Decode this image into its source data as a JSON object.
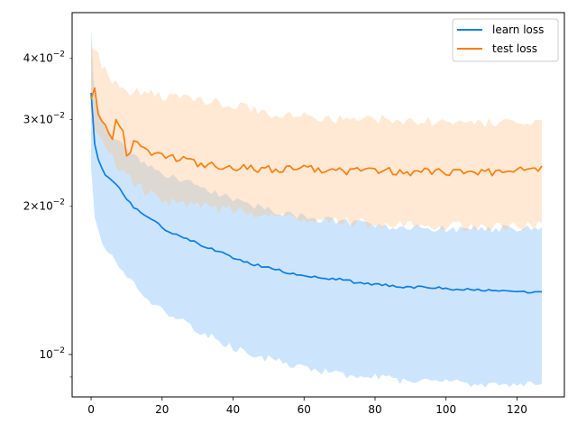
{
  "chart_data": {
    "type": "line",
    "title": "",
    "xlabel": "",
    "ylabel": "",
    "xlim": [
      -5.35,
      133.35
    ],
    "ylim": [
      0.0082,
      0.0495
    ],
    "yscale": "log",
    "grid": false,
    "legend_placement": "top-right",
    "x_ticks": [
      0,
      20,
      40,
      60,
      80,
      100,
      120
    ],
    "x_tick_labels": [
      "0",
      "20",
      "40",
      "60",
      "80",
      "100",
      "120"
    ],
    "y_major_ticks": [
      0.01
    ],
    "y_major_tick_labels": [
      "10^-2"
    ],
    "y_minor_ticks": [
      0.009,
      0.02,
      0.03,
      0.04
    ],
    "y_minor_tick_labels": [
      "",
      "2×10^-2",
      "3×10^-2",
      "4×10^-2"
    ],
    "series": [
      {
        "name": "learn loss",
        "color": "#1f77b4",
        "line_color": "#0a7ee8",
        "band_color": "#6fb4f7",
        "mean_keys": [
          [
            0,
            0.034
          ],
          [
            1,
            0.0268
          ],
          [
            2,
            0.025
          ],
          [
            3,
            0.024
          ],
          [
            4,
            0.0231
          ],
          [
            6,
            0.0226
          ],
          [
            8,
            0.0218
          ],
          [
            10,
            0.0208
          ],
          [
            12,
            0.0199
          ],
          [
            15,
            0.0193
          ],
          [
            18,
            0.0187
          ],
          [
            20,
            0.0181
          ],
          [
            22,
            0.0178
          ],
          [
            25,
            0.0174
          ],
          [
            28,
            0.0171
          ],
          [
            30,
            0.0168
          ],
          [
            35,
            0.0163
          ],
          [
            40,
            0.0157
          ],
          [
            45,
            0.0153
          ],
          [
            50,
            0.015
          ],
          [
            55,
            0.0147
          ],
          [
            60,
            0.0145
          ],
          [
            65,
            0.0143
          ],
          [
            70,
            0.0142
          ],
          [
            75,
            0.014
          ],
          [
            80,
            0.0139
          ],
          [
            85,
            0.0138
          ],
          [
            90,
            0.0137
          ],
          [
            95,
            0.0137
          ],
          [
            100,
            0.0136
          ],
          [
            110,
            0.0135
          ],
          [
            120,
            0.0134
          ],
          [
            127,
            0.0134
          ]
        ],
        "upper_keys": [
          [
            0,
            0.046
          ],
          [
            1,
            0.033
          ],
          [
            3,
            0.03
          ],
          [
            5,
            0.0285
          ],
          [
            8,
            0.027
          ],
          [
            10,
            0.026
          ],
          [
            15,
            0.0245
          ],
          [
            20,
            0.0232
          ],
          [
            30,
            0.022
          ],
          [
            40,
            0.0207
          ],
          [
            50,
            0.0197
          ],
          [
            60,
            0.019
          ],
          [
            70,
            0.0186
          ],
          [
            80,
            0.0183
          ],
          [
            90,
            0.0181
          ],
          [
            100,
            0.018
          ],
          [
            110,
            0.018
          ],
          [
            127,
            0.018
          ]
        ],
        "lower_keys": [
          [
            0,
            0.024
          ],
          [
            1,
            0.019
          ],
          [
            3,
            0.017
          ],
          [
            6,
            0.0157
          ],
          [
            10,
            0.0145
          ],
          [
            15,
            0.0132
          ],
          [
            20,
            0.0123
          ],
          [
            30,
            0.0112
          ],
          [
            40,
            0.0103
          ],
          [
            50,
            0.0098
          ],
          [
            60,
            0.0094
          ],
          [
            70,
            0.0091
          ],
          [
            80,
            0.009
          ],
          [
            90,
            0.0088
          ],
          [
            100,
            0.0088
          ],
          [
            110,
            0.0087
          ],
          [
            127,
            0.0087
          ]
        ]
      },
      {
        "name": "test loss",
        "color": "#ff7f0e",
        "line_color": "#fb7e0c",
        "band_color": "#ffbf85",
        "mean_keys": [
          [
            0,
            0.033
          ],
          [
            1,
            0.0348
          ],
          [
            2,
            0.031
          ],
          [
            4,
            0.0296
          ],
          [
            6,
            0.027
          ],
          [
            7,
            0.03
          ],
          [
            9,
            0.028
          ],
          [
            10,
            0.025
          ],
          [
            12,
            0.027
          ],
          [
            15,
            0.026
          ],
          [
            20,
            0.0255
          ],
          [
            25,
            0.025
          ],
          [
            30,
            0.0245
          ],
          [
            40,
            0.024
          ],
          [
            50,
            0.0238
          ],
          [
            60,
            0.024
          ],
          [
            70,
            0.0236
          ],
          [
            80,
            0.0236
          ],
          [
            90,
            0.0235
          ],
          [
            100,
            0.0235
          ],
          [
            110,
            0.0234
          ],
          [
            120,
            0.0236
          ],
          [
            127,
            0.0238
          ]
        ],
        "upper_keys": [
          [
            0,
            0.042
          ],
          [
            1,
            0.0415
          ],
          [
            3,
            0.039
          ],
          [
            6,
            0.036
          ],
          [
            10,
            0.0345
          ],
          [
            15,
            0.034
          ],
          [
            20,
            0.0335
          ],
          [
            30,
            0.033
          ],
          [
            40,
            0.0322
          ],
          [
            50,
            0.031
          ],
          [
            60,
            0.0305
          ],
          [
            70,
            0.0302
          ],
          [
            80,
            0.03
          ],
          [
            90,
            0.0298
          ],
          [
            100,
            0.0297
          ],
          [
            110,
            0.0296
          ],
          [
            127,
            0.0298
          ]
        ],
        "lower_keys": [
          [
            0,
            0.03
          ],
          [
            1,
            0.0285
          ],
          [
            3,
            0.027
          ],
          [
            6,
            0.025
          ],
          [
            10,
            0.023
          ],
          [
            15,
            0.0215
          ],
          [
            20,
            0.0205
          ],
          [
            30,
            0.02
          ],
          [
            40,
            0.0196
          ],
          [
            50,
            0.0192
          ],
          [
            60,
            0.0188
          ],
          [
            70,
            0.0186
          ],
          [
            80,
            0.0184
          ],
          [
            90,
            0.0183
          ],
          [
            100,
            0.0182
          ],
          [
            110,
            0.0182
          ],
          [
            127,
            0.0183
          ]
        ]
      }
    ],
    "n_points": 128
  }
}
